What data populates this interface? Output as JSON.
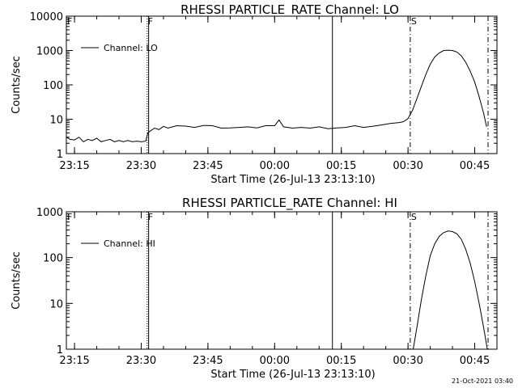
{
  "chart_data": [
    {
      "type": "line",
      "title": "RHESSI  PARTICLE_RATE  Channel:  LO",
      "xlabel": "Start Time (26-Jul-13 23:13:10)",
      "ylabel": "Counts/sec",
      "yscale": "log",
      "ylim": [
        1,
        10000
      ],
      "xlim": [
        "23:13:10",
        "00:50:00"
      ],
      "x_ticks": [
        "23:15",
        "23:30",
        "23:45",
        "00:00",
        "00:15",
        "00:30",
        "00:45"
      ],
      "y_ticks": [
        "1",
        "10",
        "100",
        "1000",
        "10000"
      ],
      "legend": {
        "position": "top-left",
        "entries": [
          "Channel: LO"
        ]
      },
      "markers": [
        {
          "time": "23:31:20",
          "style": "dotted",
          "flag": "F"
        },
        {
          "time": "23:31:40",
          "style": "solid",
          "flag": ""
        },
        {
          "time": "00:13:00",
          "style": "solid",
          "flag": ""
        },
        {
          "time": "00:30:30",
          "style": "dashdot",
          "flag": "S"
        },
        {
          "time": "00:48:00",
          "style": "dashdot",
          "flag": ""
        },
        {
          "time": "23:13:10",
          "style": "none",
          "flag": "F"
        }
      ],
      "series": [
        {
          "name": "Channel: LO",
          "x": [
            "23:13:10",
            "23:14:00",
            "23:15:00",
            "23:16:00",
            "23:17:00",
            "23:18:00",
            "23:19:00",
            "23:20:00",
            "23:21:00",
            "23:22:00",
            "23:23:00",
            "23:24:00",
            "23:25:00",
            "23:26:00",
            "23:27:00",
            "23:28:00",
            "23:29:00",
            "23:30:00",
            "23:31:00",
            "23:31:30",
            "23:32:00",
            "23:33:00",
            "23:34:00",
            "23:35:00",
            "23:36:00",
            "23:38:00",
            "23:40:00",
            "23:42:00",
            "23:44:00",
            "23:46:00",
            "23:48:00",
            "23:50:00",
            "23:52:00",
            "23:54:00",
            "23:56:00",
            "23:58:00",
            "00:00:00",
            "00:01:00",
            "00:02:00",
            "00:04:00",
            "00:06:00",
            "00:08:00",
            "00:10:00",
            "00:12:00",
            "00:14:00",
            "00:16:00",
            "00:18:00",
            "00:20:00",
            "00:22:00",
            "00:24:00",
            "00:26:00",
            "00:28:00",
            "00:29:00",
            "00:30:00",
            "00:31:00",
            "00:32:00",
            "00:33:00",
            "00:34:00",
            "00:35:00",
            "00:36:00",
            "00:37:00",
            "00:38:00",
            "00:39:00",
            "00:40:00",
            "00:41:00",
            "00:42:00",
            "00:43:00",
            "00:44:00",
            "00:45:00",
            "00:46:00",
            "00:47:00",
            "00:47:40"
          ],
          "y": [
            3,
            2.6,
            2.5,
            3.0,
            2.2,
            2.6,
            2.4,
            2.8,
            2.2,
            2.4,
            2.6,
            2.2,
            2.4,
            2.2,
            2.4,
            2.2,
            2.3,
            2.2,
            2.3,
            4.0,
            4.5,
            5.5,
            5.0,
            6.2,
            5.5,
            6.5,
            6.3,
            5.8,
            6.6,
            6.5,
            5.5,
            5.6,
            5.8,
            6.0,
            5.6,
            6.5,
            6.5,
            9.5,
            6.0,
            5.5,
            5.8,
            5.5,
            6.0,
            5.3,
            5.6,
            5.8,
            6.5,
            5.8,
            6.2,
            6.8,
            7.5,
            8.0,
            8.5,
            10.5,
            18,
            40,
            90,
            200,
            400,
            650,
            850,
            1000,
            1020,
            1000,
            900,
            700,
            450,
            250,
            120,
            45,
            15,
            6
          ]
        }
      ]
    },
    {
      "type": "line",
      "title": "RHESSI  PARTICLE_RATE  Channel:  HI",
      "xlabel": "Start Time (26-Jul-13 23:13:10)",
      "ylabel": "Counts/sec",
      "yscale": "log",
      "ylim": [
        1,
        1000
      ],
      "xlim": [
        "23:13:10",
        "00:50:00"
      ],
      "x_ticks": [
        "23:15",
        "23:30",
        "23:45",
        "00:00",
        "00:15",
        "00:30",
        "00:45"
      ],
      "y_ticks": [
        "1",
        "10",
        "100",
        "1000"
      ],
      "legend": {
        "position": "top-left",
        "entries": [
          "Channel: HI"
        ]
      },
      "markers": [
        {
          "time": "23:31:20",
          "style": "dotted",
          "flag": "F"
        },
        {
          "time": "23:31:40",
          "style": "solid",
          "flag": ""
        },
        {
          "time": "00:13:00",
          "style": "solid",
          "flag": ""
        },
        {
          "time": "00:30:30",
          "style": "dashdot",
          "flag": "S"
        },
        {
          "time": "00:48:00",
          "style": "dashdot",
          "flag": ""
        },
        {
          "time": "23:13:10",
          "style": "none",
          "flag": "F"
        }
      ],
      "series": [
        {
          "name": "Channel: HI",
          "x": [
            "00:31:10",
            "00:32:00",
            "00:33:00",
            "00:34:00",
            "00:35:00",
            "00:36:00",
            "00:37:00",
            "00:38:00",
            "00:39:00",
            "00:40:00",
            "00:41:00",
            "00:42:00",
            "00:43:00",
            "00:44:00",
            "00:45:00",
            "00:46:00",
            "00:47:00",
            "00:47:50"
          ],
          "y": [
            1.0,
            3.0,
            12,
            40,
            110,
            200,
            290,
            350,
            380,
            370,
            330,
            250,
            150,
            75,
            30,
            10,
            3,
            1.0
          ]
        }
      ]
    }
  ],
  "timestamp": "21-Oct-2021 03:40"
}
